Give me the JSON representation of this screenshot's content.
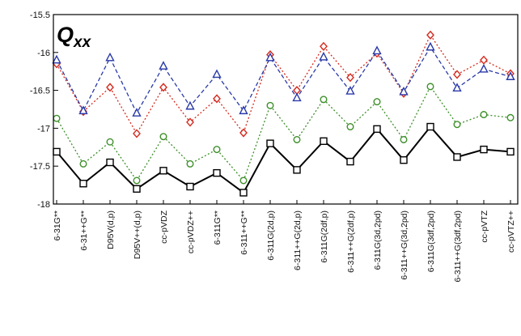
{
  "chart_data": {
    "type": "line",
    "title": "Q",
    "title_subscript": "xx",
    "xlabel": "",
    "ylabel": "",
    "ylim": [
      -18,
      -15.5
    ],
    "y_ticks": [
      -15.5,
      -16,
      -16.5,
      -17,
      -17.5,
      -18
    ],
    "y_tick_labels": [
      "-15.5",
      "-16",
      "-16.5",
      "-17",
      "-17.5",
      "-18"
    ],
    "grid": false,
    "legend": "none",
    "categories": [
      "6-31G**",
      "6-31++G**",
      "D95V(d,p)",
      "D95V++(d,p)",
      "cc-pVDZ",
      "cc-pVDZ++",
      "6-311G**",
      "6-311++G**",
      "6-311G(2d,p)",
      "6-311++G(2d,p)",
      "6-311G(2df,p)",
      "6-311++G(2df,p)",
      "6-311G(3d,2pd)",
      "6-311++G(3d,2pd)",
      "6-311G(3df,2pd)",
      "6-311++G(3df,2pd)",
      "cc-pVTZ",
      "cc-pVTZ++"
    ],
    "series": [
      {
        "color": "#d42a1e",
        "line_style": "dotted",
        "marker": "diamond",
        "values": [
          -16.15,
          -16.78,
          -16.46,
          -17.07,
          -16.46,
          -16.92,
          -16.61,
          -17.06,
          -16.03,
          -16.5,
          -15.92,
          -16.33,
          -16.01,
          -16.54,
          -15.77,
          -16.29,
          -16.1,
          -16.28
        ]
      },
      {
        "color": "#2a3aa8",
        "line_style": "dashed",
        "marker": "triangle",
        "values": [
          -16.1,
          -16.77,
          -16.07,
          -16.8,
          -16.18,
          -16.71,
          -16.29,
          -16.77,
          -16.07,
          -16.6,
          -16.06,
          -16.51,
          -15.98,
          -16.52,
          -15.93,
          -16.47,
          -16.22,
          -16.32
        ]
      },
      {
        "color": "#3d8f2a",
        "line_style": "dotted",
        "marker": "circle",
        "values": [
          -16.87,
          -17.47,
          -17.18,
          -17.69,
          -17.11,
          -17.47,
          -17.28,
          -17.69,
          -16.7,
          -17.15,
          -16.62,
          -16.98,
          -16.65,
          -17.15,
          -16.45,
          -16.95,
          -16.82,
          -16.86
        ]
      },
      {
        "color": "#000000",
        "line_style": "solid",
        "marker": "square",
        "values": [
          -17.31,
          -17.73,
          -17.45,
          -17.8,
          -17.56,
          -17.77,
          -17.59,
          -17.85,
          -17.2,
          -17.55,
          -17.17,
          -17.44,
          -17.01,
          -17.42,
          -16.98,
          -17.38,
          -17.28,
          -17.31
        ]
      }
    ]
  }
}
